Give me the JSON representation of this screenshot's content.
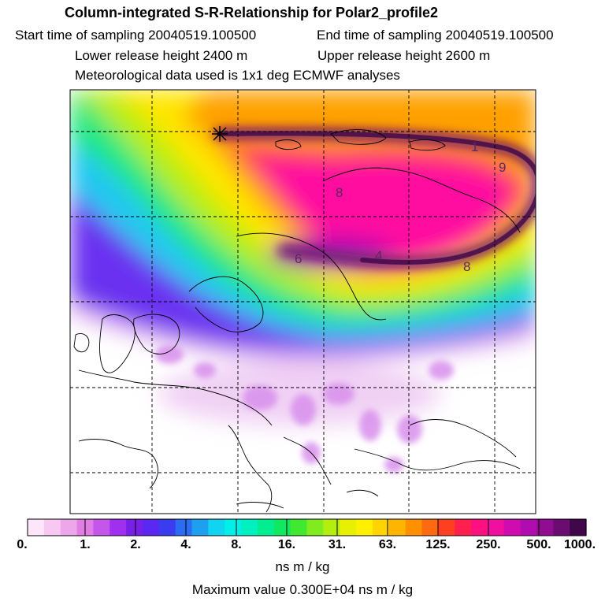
{
  "header": {
    "title": "Column-integrated S-R-Relationship for Polar2_profile2",
    "start_time": "Start time of sampling 20040519.100500",
    "end_time": "End time of sampling 20040519.100500",
    "lower_height": "Lower release height 2400 m",
    "upper_height": "Upper release height 2600 m",
    "met_data": "Meteorological data used is 1x1 deg ECMWF analyses"
  },
  "map": {
    "contour_labels": [
      "8",
      "9",
      "6",
      "4",
      "8",
      "1"
    ],
    "release_marker": "star-marker"
  },
  "colorbar": {
    "labels": [
      "0.",
      "1.",
      "2.",
      "4.",
      "8.",
      "16.",
      "31.",
      "63.",
      "125.",
      "250.",
      "500.",
      "1000."
    ],
    "colors": [
      "#fde6fa",
      "#f6c8f2",
      "#eea6ea",
      "#e07ee4",
      "#c456ec",
      "#a030f0",
      "#7820e8",
      "#5a28f0",
      "#3a3cf0",
      "#2a6cf2",
      "#1ea0f0",
      "#10d4f0",
      "#00f0e8",
      "#00f0c0",
      "#00ee90",
      "#10e860",
      "#40e830",
      "#80ec20",
      "#b4ee10",
      "#e6f000",
      "#fff000",
      "#ffd400",
      "#ffb400",
      "#ff9000",
      "#ff6a10",
      "#ff4020",
      "#ff2050",
      "#ff1080",
      "#f010a0",
      "#d00cb0",
      "#b00cb0",
      "#900c90",
      "#6a0c70",
      "#40084a"
    ],
    "units": "ns m / kg"
  },
  "footer": {
    "max_value": "Maximum value  0.300E+04 ns m / kg"
  }
}
